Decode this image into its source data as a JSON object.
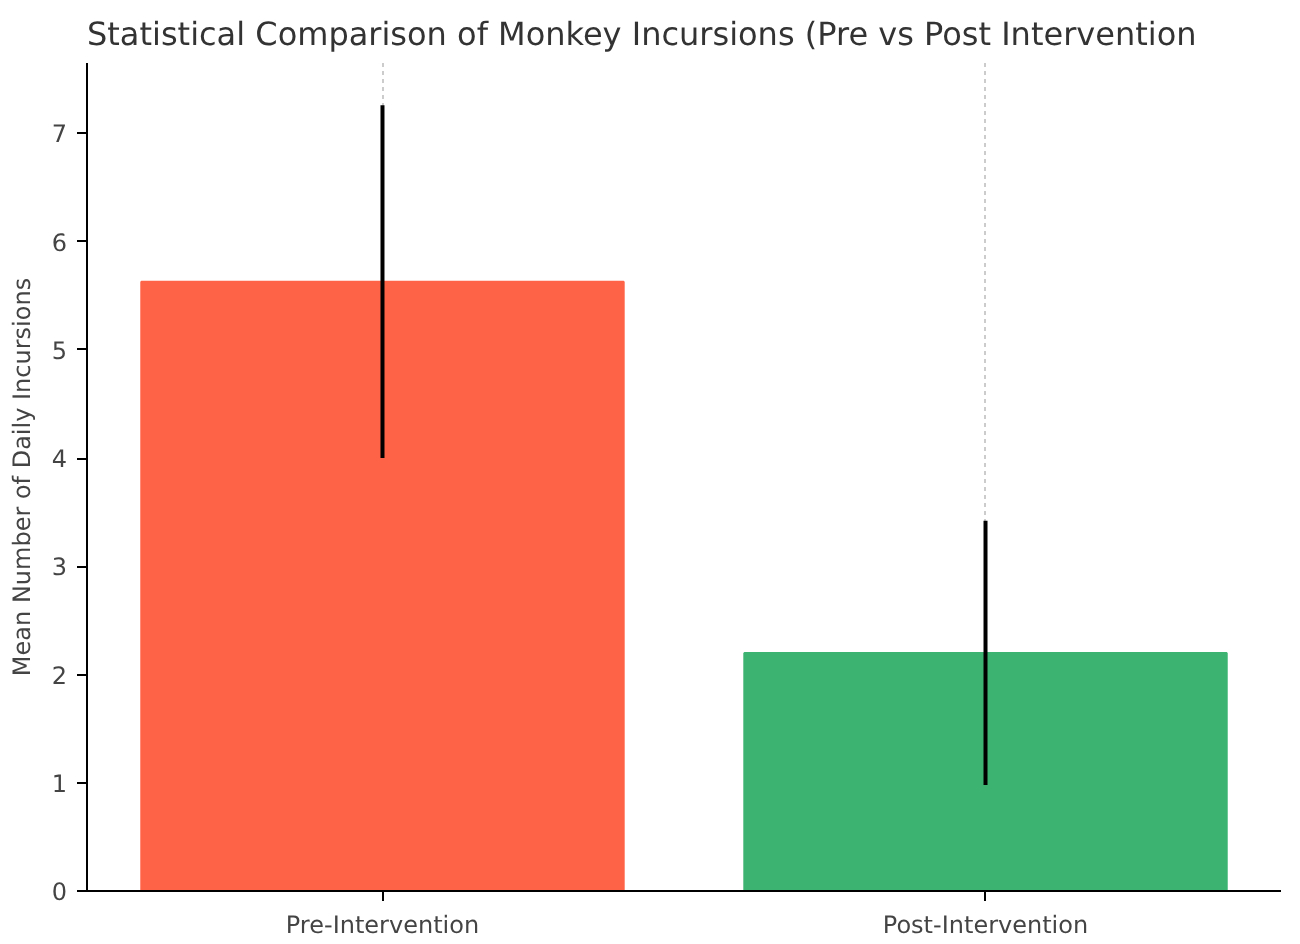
{
  "chart_data": {
    "type": "bar",
    "title": "Statistical Comparison of Monkey Incursions (Pre vs Post Intervention",
    "ylabel": "Mean Number of Daily Incursions",
    "categories": [
      "Pre-Intervention",
      "Post-Intervention"
    ],
    "values": [
      5.63,
      2.2
    ],
    "colors": [
      "#ff6347",
      "#3cb371"
    ],
    "errors": [
      1.63,
      1.22
    ],
    "ylim": [
      0,
      7.65
    ],
    "yticks": [
      0,
      1,
      2,
      3,
      4,
      5,
      6,
      7
    ],
    "grid": "x"
  }
}
